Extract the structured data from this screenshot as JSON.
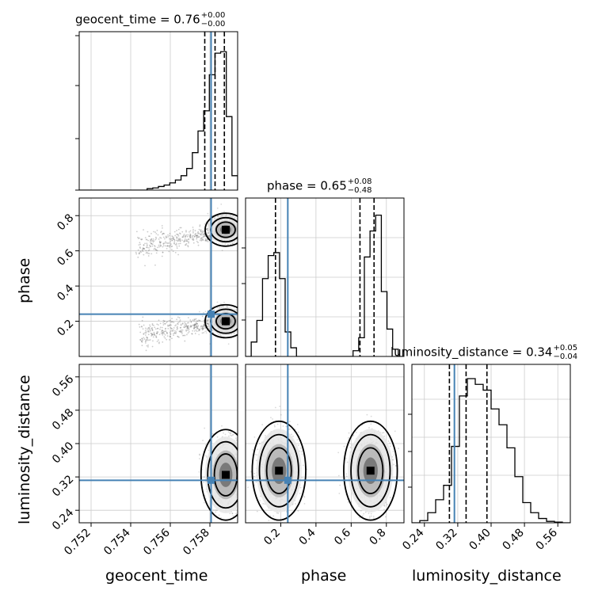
{
  "chart_data": {
    "type": "corner",
    "parameters": [
      {
        "name": "geocent_time",
        "median": "0.76",
        "plus": "+0.00",
        "minus": "−0.00",
        "truth": 0.75806,
        "range": [
          0.7514,
          0.7594
        ],
        "ticks": [
          0.752,
          0.754,
          0.756,
          0.758
        ],
        "tick_labels": [
          "0.752",
          "0.754",
          "0.756",
          "0.758"
        ],
        "quantiles": [
          0.75774,
          0.75826,
          0.75873
        ]
      },
      {
        "name": "phase",
        "median": "0.65",
        "plus": "+0.08",
        "minus": "−0.48",
        "truth": 0.24,
        "range": [
          0.0,
          0.9
        ],
        "ticks": [
          0.2,
          0.4,
          0.6,
          0.8
        ],
        "tick_labels": [
          "0.2",
          "0.4",
          "0.6",
          "0.8"
        ],
        "quantiles": [
          0.17,
          0.65,
          0.73
        ]
      },
      {
        "name": "luminosity_distance",
        "median": "0.34",
        "plus": "+0.05",
        "minus": "−0.04",
        "truth": 0.312,
        "range": [
          0.21,
          0.59
        ],
        "ticks": [
          0.24,
          0.32,
          0.4,
          0.48,
          0.56
        ],
        "tick_labels": [
          "0.24",
          "0.32",
          "0.40",
          "0.48",
          "0.56"
        ],
        "quantiles": [
          0.3,
          0.34,
          0.39
        ]
      }
    ],
    "histograms": {
      "geocent_time": [
        0.0,
        0.0,
        0.0,
        0.0,
        0.0,
        0.0,
        0.0,
        0.0,
        0.0,
        0.0,
        0.0,
        0.0,
        0.01,
        0.015,
        0.025,
        0.035,
        0.05,
        0.07,
        0.1,
        0.15,
        0.26,
        0.41,
        0.55,
        0.8,
        0.95,
        0.96,
        0.51,
        0.1
      ],
      "phase": [
        0.0,
        0.1,
        0.25,
        0.54,
        0.7,
        0.72,
        0.54,
        0.17,
        0.06,
        0.0,
        0.0,
        0.0,
        0.0,
        0.0,
        0.0,
        0.0,
        0.0,
        0.0,
        0.0,
        0.04,
        0.13,
        0.69,
        0.87,
        0.98,
        0.45,
        0.19,
        0.05,
        0.0
      ],
      "luminosity_distance": [
        0.0,
        0.015,
        0.07,
        0.16,
        0.26,
        0.53,
        0.88,
        1.0,
        0.96,
        0.92,
        0.79,
        0.68,
        0.52,
        0.32,
        0.14,
        0.07,
        0.03,
        0.01,
        0.005,
        0.0
      ]
    },
    "modes": {
      "geocent_time-phase": [
        [
          0.7588,
          0.72
        ],
        [
          0.7588,
          0.2
        ]
      ],
      "geocent_time-luminosity_distance": [
        [
          0.7588,
          0.325
        ]
      ],
      "phase-luminosity_distance": [
        [
          0.19,
          0.335
        ],
        [
          0.71,
          0.335
        ]
      ]
    },
    "colors": {
      "truth": "#4682b4",
      "hist": "#000000",
      "grid": "#cccccc",
      "scatter": "#555555"
    }
  }
}
